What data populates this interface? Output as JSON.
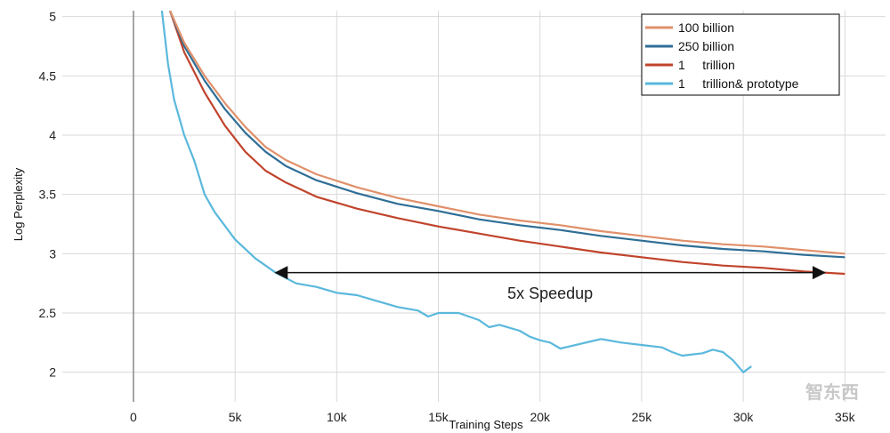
{
  "chart_data": {
    "type": "line",
    "title": "",
    "xlabel": "Training Steps",
    "ylabel": "Log Perplexity",
    "xlim": [
      -3500,
      37000
    ],
    "ylim": [
      1.75,
      5.05
    ],
    "grid": true,
    "legend_position": "top-right",
    "x_ticks": [
      0,
      5000,
      10000,
      15000,
      20000,
      25000,
      30000,
      35000
    ],
    "x_tick_labels": [
      "0",
      "5k",
      "10k",
      "15k",
      "20k",
      "25k",
      "30k",
      "35k"
    ],
    "y_ticks": [
      2,
      2.5,
      3,
      3.5,
      4,
      4.5,
      5
    ],
    "y_tick_labels": [
      "2",
      "2.5",
      "3",
      "3.5",
      "4",
      "4.5",
      "5"
    ],
    "series": [
      {
        "name": "100 billion",
        "color": "#e0906a",
        "x": [
          1800,
          2500,
          3500,
          4500,
          5500,
          6500,
          7500,
          9000,
          11000,
          13000,
          15000,
          17000,
          19000,
          21000,
          23000,
          25000,
          27000,
          29000,
          31000,
          33000,
          35000
        ],
        "y": [
          5.05,
          4.78,
          4.5,
          4.27,
          4.07,
          3.9,
          3.79,
          3.67,
          3.56,
          3.47,
          3.4,
          3.33,
          3.28,
          3.24,
          3.19,
          3.15,
          3.11,
          3.08,
          3.06,
          3.03,
          3.0
        ]
      },
      {
        "name": "250 billion",
        "color": "#2f6e96",
        "x": [
          1800,
          2500,
          3500,
          4500,
          5500,
          6500,
          7500,
          9000,
          11000,
          13000,
          15000,
          17000,
          19000,
          21000,
          23000,
          25000,
          27000,
          29000,
          31000,
          33000,
          35000
        ],
        "y": [
          5.05,
          4.75,
          4.46,
          4.22,
          4.02,
          3.86,
          3.74,
          3.62,
          3.51,
          3.42,
          3.36,
          3.29,
          3.24,
          3.2,
          3.15,
          3.11,
          3.07,
          3.04,
          3.02,
          2.99,
          2.97
        ]
      },
      {
        "name": "1     trillion",
        "color": "#c0442c",
        "x": [
          1800,
          2500,
          3500,
          4500,
          5500,
          6500,
          7500,
          9000,
          11000,
          13000,
          15000,
          17000,
          19000,
          21000,
          23000,
          25000,
          27000,
          29000,
          31000,
          33000,
          35000
        ],
        "y": [
          5.05,
          4.7,
          4.36,
          4.08,
          3.86,
          3.7,
          3.6,
          3.48,
          3.38,
          3.3,
          3.23,
          3.17,
          3.11,
          3.06,
          3.01,
          2.97,
          2.93,
          2.9,
          2.88,
          2.85,
          2.83
        ]
      },
      {
        "name": "1     trillion& prototype",
        "color": "#5ab8dc",
        "x": [
          1400,
          1700,
          2000,
          2500,
          3000,
          3500,
          4000,
          5000,
          6000,
          7000,
          8000,
          9000,
          10000,
          11000,
          12000,
          13000,
          14000,
          14500,
          15000,
          16000,
          16500,
          17000,
          17500,
          18000,
          19000,
          19500,
          20000,
          20500,
          21000,
          22000,
          22500,
          23000,
          24000,
          25000,
          26000,
          26500,
          27000,
          28000,
          28500,
          29000,
          29500,
          30000,
          30400
        ],
        "y": [
          5.05,
          4.6,
          4.3,
          4.0,
          3.78,
          3.5,
          3.35,
          3.12,
          2.96,
          2.84,
          2.75,
          2.72,
          2.67,
          2.65,
          2.6,
          2.55,
          2.52,
          2.47,
          2.5,
          2.5,
          2.47,
          2.44,
          2.38,
          2.4,
          2.35,
          2.3,
          2.27,
          2.25,
          2.2,
          2.24,
          2.26,
          2.28,
          2.25,
          2.23,
          2.21,
          2.17,
          2.14,
          2.16,
          2.19,
          2.17,
          2.1,
          2.0,
          2.05
        ]
      }
    ],
    "annotations": [
      {
        "text": "5x Speedup",
        "arrow_from_x": 7000,
        "arrow_to_x": 34000,
        "arrow_y": 2.84,
        "text_x": 20500,
        "text_y": 2.62
      }
    ]
  },
  "watermark": "智东西"
}
